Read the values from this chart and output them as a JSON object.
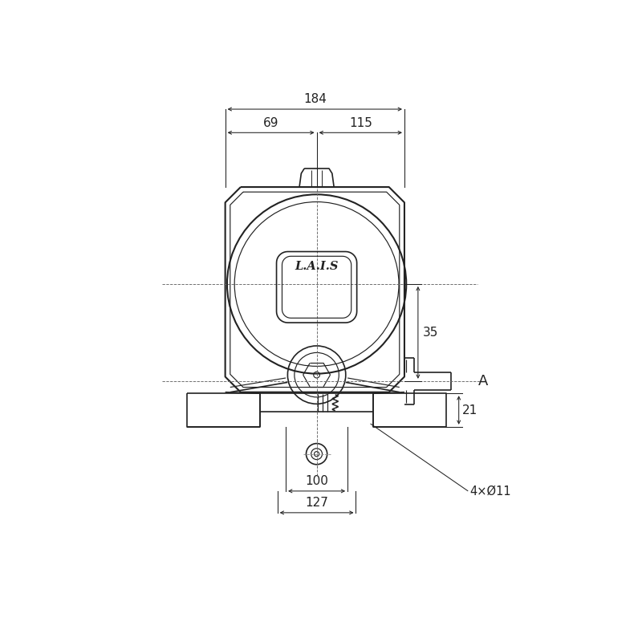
{
  "bg_color": "#ffffff",
  "line_color": "#222222",
  "dim_color": "#222222",
  "annotations": {
    "dim_184": "184",
    "dim_69": "69",
    "dim_115": "115",
    "dim_35": "35",
    "dim_21": "21",
    "dim_100": "100",
    "dim_127": "127",
    "label_A": "A",
    "label_holes": "4×Ø11",
    "label_LAIS": "L.A.I.S"
  },
  "figsize": [
    8.0,
    8.0
  ],
  "dpi": 100
}
